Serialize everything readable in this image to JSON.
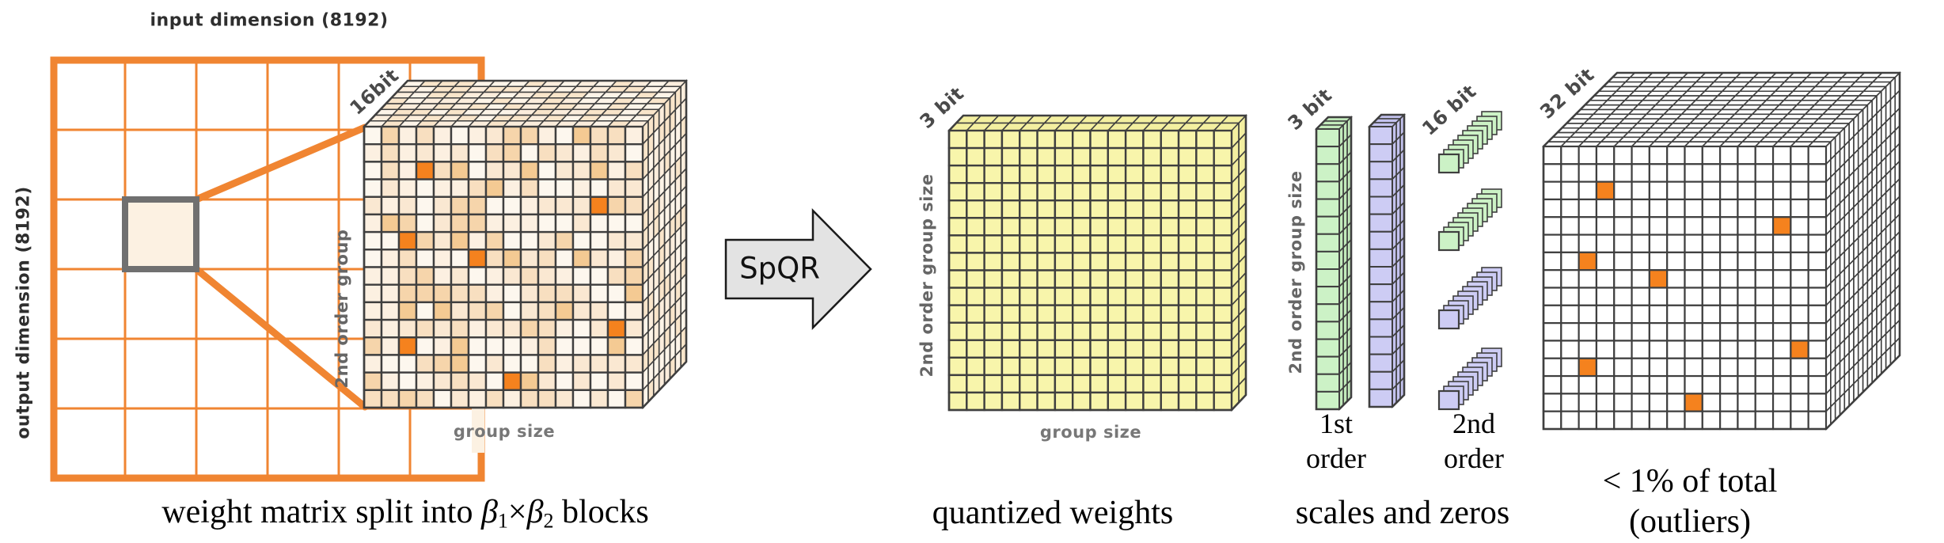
{
  "figure": {
    "weight_matrix_panel": {
      "input_dim_label": "input dimension (8192)",
      "output_dim_label": "output dimension (8192)",
      "bit_label": "16bit",
      "side_label": "2nd order group",
      "bottom_label": "group size",
      "caption_segments": [
        {
          "text": "weight matrix split into "
        },
        {
          "text": "β",
          "style": "italic"
        },
        {
          "text": "1",
          "style": "sub"
        },
        {
          "text": "×"
        },
        {
          "text": "β",
          "style": "italic"
        },
        {
          "text": "2",
          "style": "sub"
        },
        {
          "text": " blocks"
        }
      ],
      "grid": {
        "rows": 6,
        "cols": 6
      },
      "cube": {
        "rows": 16,
        "cols": 16,
        "depth": 8
      },
      "outlier_cells": [
        [
          2,
          3
        ],
        [
          4,
          13
        ],
        [
          6,
          2
        ],
        [
          7,
          6
        ],
        [
          11,
          14
        ],
        [
          12,
          2
        ],
        [
          14,
          8
        ]
      ]
    },
    "arrow": {
      "label": "SpQR"
    },
    "quantized_panel": {
      "bit_label": "3 bit",
      "side_label": "2nd order group size",
      "bottom_label": "group size",
      "caption": "quantized weights",
      "cube": {
        "rows": 16,
        "cols": 16,
        "depth": 2
      }
    },
    "scales_panel": {
      "columns_bit_label": "3 bit",
      "bars_bit_label": "16 bit",
      "side_label": "2nd order group size",
      "first_order_label": [
        "1st",
        "order"
      ],
      "second_order_label": [
        "2nd",
        "order"
      ],
      "caption": "scales and zeros",
      "columns": [
        {
          "name": "scales-column",
          "color_key": "green",
          "cells": 16
        },
        {
          "name": "zeros-column",
          "color_key": "purple",
          "cells": 16
        }
      ],
      "bars": [
        {
          "name": "second-order-scale-bar-1",
          "color_key": "green"
        },
        {
          "name": "second-order-scale-bar-2",
          "color_key": "green"
        },
        {
          "name": "second-order-zero-bar-1",
          "color_key": "purple"
        },
        {
          "name": "second-order-zero-bar-2",
          "color_key": "purple"
        }
      ]
    },
    "outliers_panel": {
      "bit_label": "32 bit",
      "caption_lines": [
        "< 1% of total",
        "(outliers)"
      ],
      "cube": {
        "rows": 16,
        "cols": 16,
        "depth": 16
      },
      "outlier_cells": [
        [
          2,
          3
        ],
        [
          4,
          13
        ],
        [
          6,
          2
        ],
        [
          7,
          6
        ],
        [
          11,
          14
        ],
        [
          12,
          2
        ],
        [
          14,
          8
        ]
      ]
    }
  },
  "colors": {
    "accent_orange": "#f08532",
    "outlier_orange": "#f5821e",
    "block_fill": "#fcf1e2",
    "block_border": "#707070",
    "cell_stroke": "#3f3f3f",
    "mosaic_front": [
      "#fdf7ee",
      "#fcf0e1",
      "#fae8d2",
      "#f8dfc0",
      "#f6d5ab",
      "#f4ca93"
    ],
    "mosaic_side": [
      "#fdf4e8",
      "#fbeddc",
      "#f9e5ca"
    ],
    "yellow": "#f8f5ab",
    "yellow_side": "#f3efa0",
    "green": "#ccf2c6",
    "green_side": "#c2eabb",
    "purple": "#cdccf4",
    "purple_side": "#c3c2ee",
    "white_cell": "#ffffff",
    "arrow_fill": "#e3e3e3",
    "arrow_stroke": "#1a1a1a",
    "label_gray": "#666666",
    "label_dark": "#2e2e2e",
    "caption_black": "#000000"
  }
}
